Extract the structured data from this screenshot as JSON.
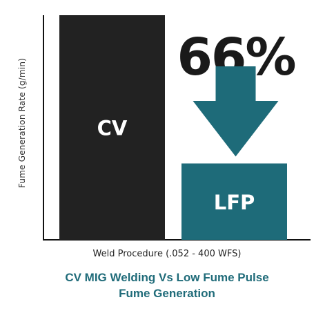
{
  "chart_data": {
    "type": "bar",
    "categories": [
      "CV",
      "LFP"
    ],
    "values": [
      100,
      34
    ],
    "bar_colors": [
      "#222222",
      "#1e6b79"
    ],
    "ylim": [
      0,
      100
    ],
    "grid": false,
    "legend": "none",
    "ylabel": "Fume Generation Rate (g/min)",
    "xlabel": "Weld Procedure (.052 - 400 WFS)",
    "title_lines": [
      "CV MIG Welding Vs Low Fume Pulse",
      "Fume Generation"
    ],
    "annotation": {
      "text": "66%",
      "arrow": "down",
      "arrow_color": "#1e6b79"
    }
  }
}
